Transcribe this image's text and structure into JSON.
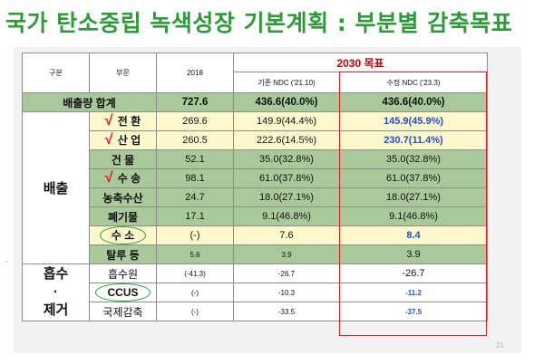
{
  "title": "국가 탄소중립 녹색성장 기본계획 : 부분별 감축목표",
  "headers": {
    "division": "구분",
    "sector": "부문",
    "year2018": "2018",
    "target2030": "2030 목표",
    "ndc_old": "기존 NDC ('21.10)",
    "ndc_new": "수정 NDC ('23.3)"
  },
  "total": {
    "label": "배출량 합계",
    "y2018": "727.6",
    "ndc_old": "436.6(40.0%)",
    "ndc_new": "436.6(40.0%)"
  },
  "group_emission": "배출",
  "group_absorb": [
    "흡수",
    "·",
    "제거"
  ],
  "check_mark": "√",
  "rows": [
    {
      "sector": "전 환",
      "y2018": "269.6",
      "ndc_old": "149.9(44.4%)",
      "ndc_new": "145.9(45.9%)"
    },
    {
      "sector": "산 업",
      "y2018": "260.5",
      "ndc_old": "222.6(14.5%)",
      "ndc_new": "230.7(11.4%)"
    },
    {
      "sector": "건 물",
      "y2018": "52.1",
      "ndc_old": "35.0(32.8%)",
      "ndc_new": "35.0(32.8%)"
    },
    {
      "sector": "수 송",
      "y2018": "98.1",
      "ndc_old": "61.0(37.8%)",
      "ndc_new": "61.0(37.8%)"
    },
    {
      "sector": "농축수산",
      "y2018": "24.7",
      "ndc_old": "18.0(27.1%)",
      "ndc_new": "18.0(27.1%)"
    },
    {
      "sector": "폐기물",
      "y2018": "17.1",
      "ndc_old": "9.1(46.8%)",
      "ndc_new": "9.1(46.8%)"
    },
    {
      "sector": "수 소",
      "y2018": "(-)",
      "ndc_old": "7.6",
      "ndc_new": "8.4"
    },
    {
      "sector": "탈루 등",
      "y2018": "5.6",
      "ndc_old": "3.9",
      "ndc_new": "3.9"
    },
    {
      "sector": "흡수원",
      "y2018": "(-41.3)",
      "ndc_old": "-26.7",
      "ndc_new": "-26.7"
    },
    {
      "sector": "CCUS",
      "y2018": "(-)",
      "ndc_old": "-10.3",
      "ndc_new": "-11.2"
    },
    {
      "sector": "국제감축",
      "y2018": "(-)",
      "ndc_old": "-33.5",
      "ndc_new": "-37.5"
    }
  ],
  "page_number": "21",
  "side_mark": ".",
  "colors": {
    "title": "#2e9a3a",
    "highlight_border": "#e02020",
    "changed_value": "#2050c8",
    "check": "#e0102a",
    "green_row": "#a9c99a",
    "yellow_row": "#fff8cc"
  }
}
